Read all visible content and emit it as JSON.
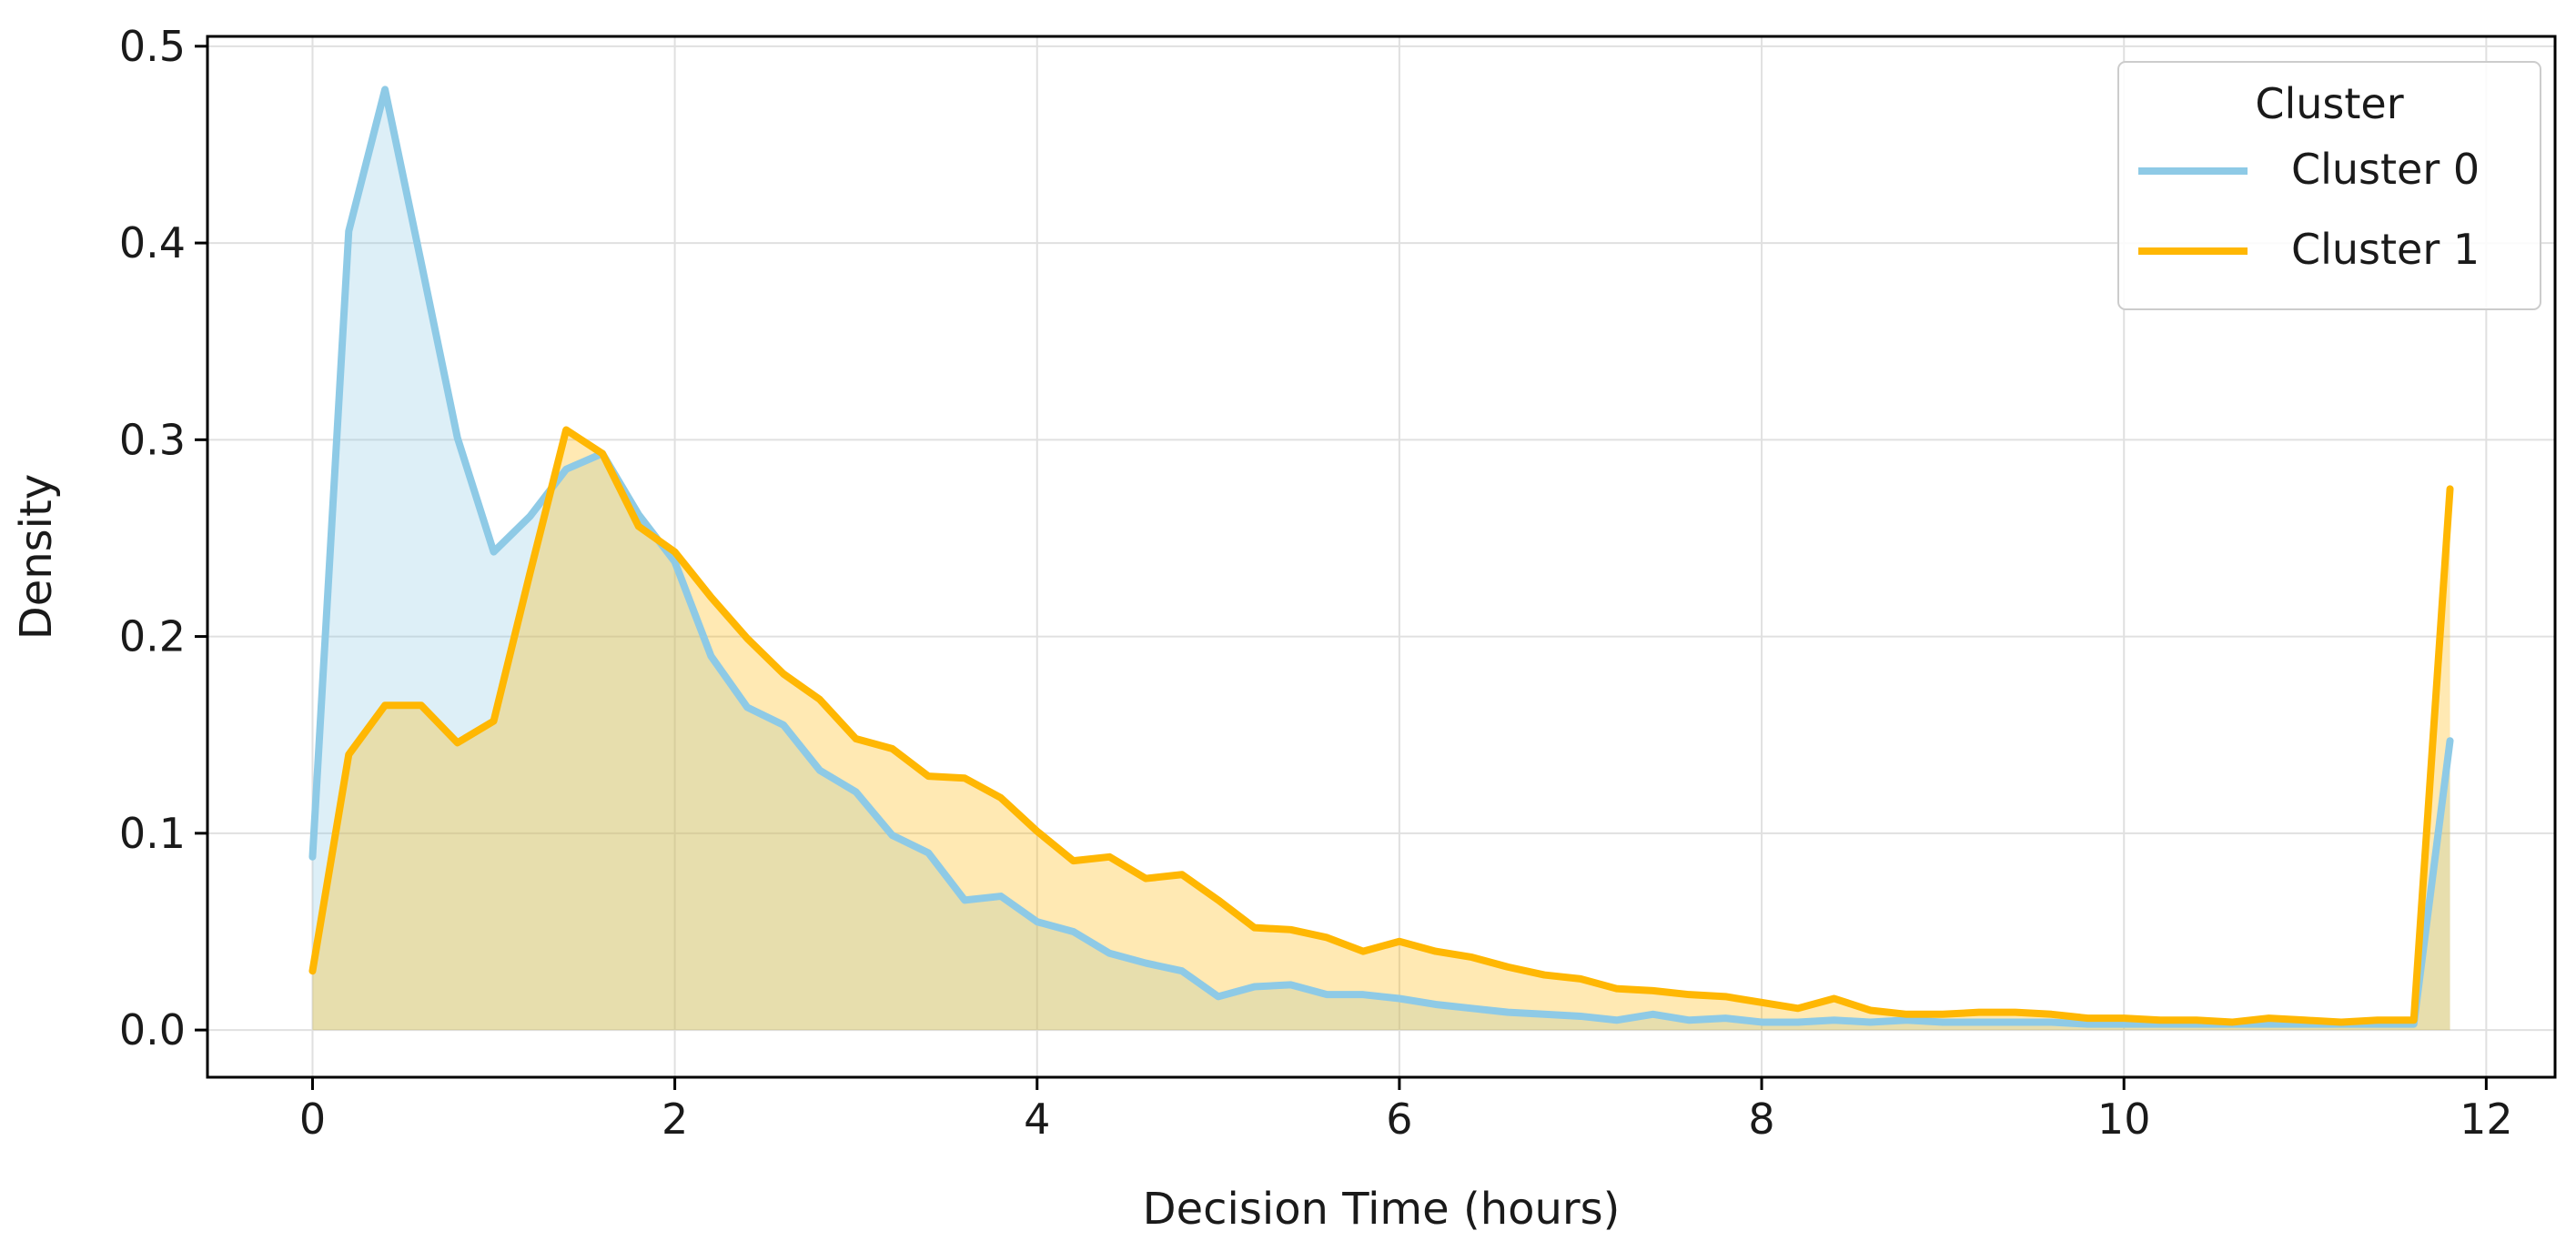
{
  "chart_data": {
    "type": "area",
    "title": "",
    "xlabel": "Decision Time (hours)",
    "ylabel": "Density",
    "xlim": [
      -0.58,
      12.38
    ],
    "ylim": [
      -0.024,
      0.505
    ],
    "xticks": [
      0,
      2,
      4,
      6,
      8,
      10,
      12
    ],
    "xtick_labels": [
      "0",
      "2",
      "4",
      "6",
      "8",
      "10",
      "12"
    ],
    "yticks": [
      0.0,
      0.1,
      0.2,
      0.3,
      0.4,
      0.5
    ],
    "ytick_labels": [
      "0.0",
      "0.1",
      "0.2",
      "0.3",
      "0.4",
      "0.5"
    ],
    "grid": true,
    "legend": {
      "title": "Cluster",
      "placement": "top-right"
    },
    "x": [
      0.0,
      0.2,
      0.4,
      0.6,
      0.8,
      1.0,
      1.2,
      1.4,
      1.6,
      1.8,
      2.0,
      2.2,
      2.4,
      2.6,
      2.8,
      3.0,
      3.2,
      3.4,
      3.6,
      3.8,
      4.0,
      4.2,
      4.4,
      4.6,
      4.8,
      5.0,
      5.2,
      5.4,
      5.6,
      5.8,
      6.0,
      6.2,
      6.4,
      6.6,
      6.8,
      7.0,
      7.2,
      7.4,
      7.6,
      7.8,
      8.0,
      8.2,
      8.4,
      8.6,
      8.8,
      9.0,
      9.2,
      9.4,
      9.6,
      9.8,
      10.0,
      10.2,
      10.4,
      10.6,
      10.8,
      11.0,
      11.2,
      11.4,
      11.6,
      11.8
    ],
    "series": [
      {
        "name": "Cluster 0",
        "color": "#8ecae6",
        "values": [
          0.088,
          0.406,
          0.478,
          0.39,
          0.301,
          0.243,
          0.261,
          0.285,
          0.293,
          0.262,
          0.238,
          0.19,
          0.164,
          0.155,
          0.132,
          0.121,
          0.099,
          0.09,
          0.066,
          0.068,
          0.055,
          0.05,
          0.039,
          0.034,
          0.03,
          0.017,
          0.022,
          0.023,
          0.018,
          0.018,
          0.016,
          0.013,
          0.011,
          0.009,
          0.008,
          0.007,
          0.005,
          0.008,
          0.005,
          0.006,
          0.004,
          0.004,
          0.005,
          0.004,
          0.005,
          0.004,
          0.004,
          0.004,
          0.004,
          0.003,
          0.003,
          0.003,
          0.003,
          0.003,
          0.003,
          0.003,
          0.003,
          0.003,
          0.003,
          0.147
        ]
      },
      {
        "name": "Cluster 1",
        "color": "#ffb703",
        "values": [
          0.03,
          0.14,
          0.165,
          0.165,
          0.146,
          0.157,
          0.232,
          0.305,
          0.293,
          0.256,
          0.243,
          0.22,
          0.199,
          0.181,
          0.168,
          0.148,
          0.143,
          0.129,
          0.128,
          0.118,
          0.101,
          0.086,
          0.088,
          0.077,
          0.079,
          0.066,
          0.052,
          0.051,
          0.047,
          0.04,
          0.045,
          0.04,
          0.037,
          0.032,
          0.028,
          0.026,
          0.021,
          0.02,
          0.018,
          0.017,
          0.014,
          0.011,
          0.016,
          0.01,
          0.008,
          0.008,
          0.009,
          0.009,
          0.008,
          0.006,
          0.006,
          0.005,
          0.005,
          0.004,
          0.006,
          0.005,
          0.004,
          0.005,
          0.005,
          0.275
        ]
      }
    ]
  }
}
